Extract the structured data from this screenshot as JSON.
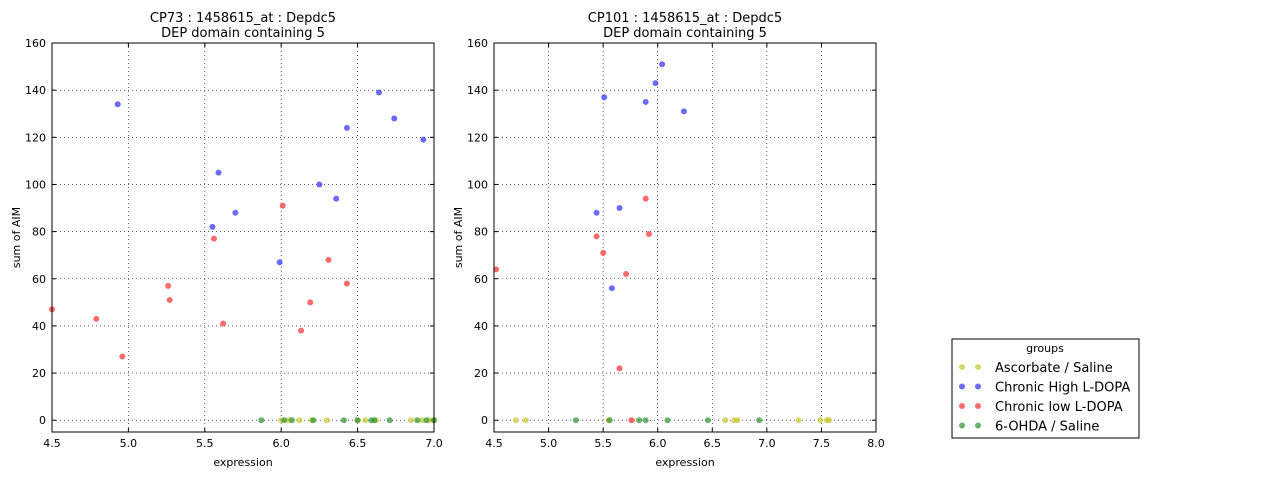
{
  "colors": {
    "Ascorbate / Saline": "#c8c832",
    "Chronic High L-DOPA": "#3232ff",
    "Chronic low L-DOPA": "#ff3232",
    "6-OHDA / Saline": "#329632"
  },
  "legend": {
    "title": "groups",
    "entries": [
      "Ascorbate / Saline",
      "Chronic High L-DOPA",
      "Chronic low L-DOPA",
      "6-OHDA / Saline"
    ]
  },
  "chart_data": [
    {
      "type": "scatter",
      "title": "CP73 : 1458615_at : Depdc5",
      "subtitle": "DEP domain containing 5",
      "xlabel": "expression",
      "ylabel": "sum of AIM",
      "xlim": [
        4.5,
        7.0
      ],
      "ylim": [
        -5,
        160
      ],
      "xticks": [
        "4.5",
        "5.0",
        "5.5",
        "6.0",
        "6.5",
        "7.0"
      ],
      "yticks": [
        "0",
        "20",
        "40",
        "60",
        "80",
        "100",
        "120",
        "140",
        "160"
      ],
      "grid": true,
      "series": [
        {
          "name": "Ascorbate / Saline",
          "points": [
            [
              6.0,
              0
            ],
            [
              6.05,
              0
            ],
            [
              6.12,
              0
            ],
            [
              6.2,
              0
            ],
            [
              6.3,
              0
            ],
            [
              6.5,
              0
            ],
            [
              6.55,
              0
            ],
            [
              6.62,
              0
            ],
            [
              6.85,
              0
            ],
            [
              6.92,
              0
            ],
            [
              6.97,
              0
            ],
            [
              7.0,
              0
            ]
          ]
        },
        {
          "name": "Chronic High L-DOPA",
          "points": [
            [
              4.93,
              134
            ],
            [
              5.59,
              105
            ],
            [
              5.55,
              82
            ],
            [
              5.7,
              88
            ],
            [
              5.99,
              67
            ],
            [
              6.25,
              100
            ],
            [
              6.36,
              94
            ],
            [
              6.43,
              124
            ],
            [
              6.64,
              139
            ],
            [
              6.74,
              128
            ],
            [
              6.93,
              119
            ]
          ]
        },
        {
          "name": "Chronic low L-DOPA",
          "points": [
            [
              4.5,
              47
            ],
            [
              4.79,
              43
            ],
            [
              4.96,
              27
            ],
            [
              5.26,
              57
            ],
            [
              5.27,
              51
            ],
            [
              5.56,
              77
            ],
            [
              5.62,
              41
            ],
            [
              6.01,
              91
            ],
            [
              6.13,
              38
            ],
            [
              6.19,
              50
            ],
            [
              6.31,
              68
            ],
            [
              6.43,
              58
            ]
          ]
        },
        {
          "name": "6-OHDA / Saline",
          "points": [
            [
              5.87,
              0
            ],
            [
              6.02,
              0
            ],
            [
              6.07,
              0
            ],
            [
              6.21,
              0
            ],
            [
              6.41,
              0
            ],
            [
              6.5,
              0
            ],
            [
              6.59,
              0
            ],
            [
              6.61,
              0
            ],
            [
              6.71,
              0
            ],
            [
              6.89,
              0
            ],
            [
              6.95,
              0
            ],
            [
              7.0,
              0
            ]
          ]
        }
      ]
    },
    {
      "type": "scatter",
      "title": "CP101 : 1458615_at : Depdc5",
      "subtitle": "DEP domain containing 5",
      "xlabel": "expression",
      "ylabel": "sum of AIM",
      "xlim": [
        4.5,
        8.0
      ],
      "ylim": [
        -5,
        160
      ],
      "xticks": [
        "4.5",
        "5.0",
        "5.5",
        "6.0",
        "6.5",
        "7.0",
        "7.5",
        "8.0"
      ],
      "yticks": [
        "0",
        "20",
        "40",
        "60",
        "80",
        "100",
        "120",
        "140",
        "160"
      ],
      "grid": true,
      "series": [
        {
          "name": "Ascorbate / Saline",
          "points": [
            [
              4.7,
              0
            ],
            [
              4.79,
              0
            ],
            [
              5.55,
              0
            ],
            [
              6.62,
              0
            ],
            [
              6.7,
              0
            ],
            [
              6.73,
              0
            ],
            [
              7.29,
              0
            ],
            [
              7.49,
              0
            ],
            [
              7.55,
              0
            ],
            [
              7.57,
              0
            ]
          ]
        },
        {
          "name": "Chronic High L-DOPA",
          "points": [
            [
              5.51,
              137
            ],
            [
              5.89,
              135
            ],
            [
              5.98,
              143
            ],
            [
              6.04,
              151
            ],
            [
              6.24,
              131
            ],
            [
              5.44,
              88
            ],
            [
              5.65,
              90
            ],
            [
              5.58,
              56
            ]
          ]
        },
        {
          "name": "Chronic low L-DOPA",
          "points": [
            [
              4.52,
              64
            ],
            [
              5.44,
              78
            ],
            [
              5.5,
              71
            ],
            [
              5.71,
              62
            ],
            [
              5.89,
              94
            ],
            [
              5.92,
              79
            ],
            [
              5.65,
              22
            ],
            [
              5.76,
              0
            ]
          ]
        },
        {
          "name": "6-OHDA / Saline",
          "points": [
            [
              5.25,
              0
            ],
            [
              5.56,
              0
            ],
            [
              5.83,
              0
            ],
            [
              5.89,
              0
            ],
            [
              6.09,
              0
            ],
            [
              6.46,
              0
            ],
            [
              6.93,
              0
            ]
          ]
        }
      ]
    }
  ]
}
